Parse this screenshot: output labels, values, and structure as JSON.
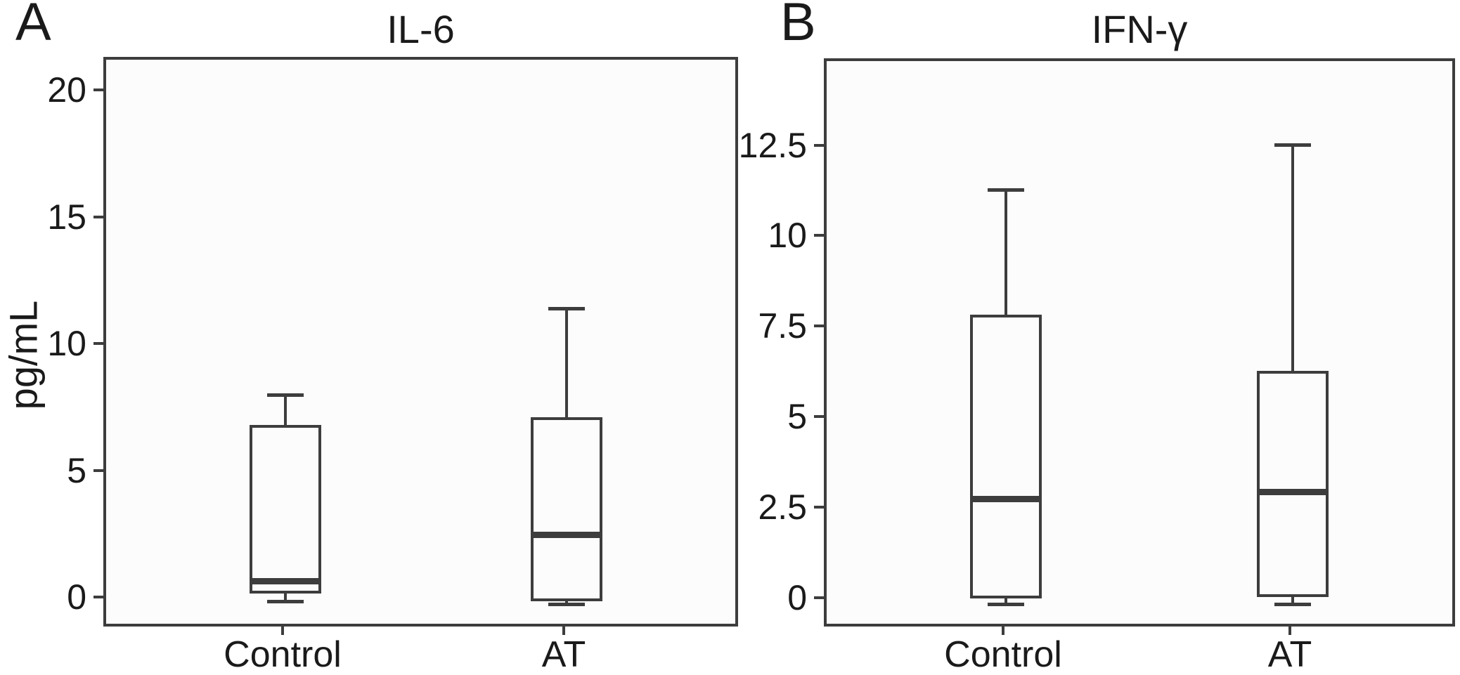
{
  "style": {
    "stroke": "#3d3d3d",
    "text": "#111111",
    "panel_bg": "#fcfcfc",
    "page_bg": "#ffffff"
  },
  "chart_data": [
    {
      "type": "box",
      "panel_label": "A",
      "title": "IL-6",
      "ylabel": "pg/mL",
      "xlabel": "",
      "categories": [
        "Control",
        "AT"
      ],
      "yticks": [
        0,
        5,
        10,
        15,
        20
      ],
      "ylim": [
        -1.15,
        21.3
      ],
      "grid": false,
      "legend": false,
      "boxes": [
        {
          "category": "Control",
          "whisker_low": -0.05,
          "q1": 0.25,
          "median": 0.75,
          "q3": 6.9,
          "whisker_high": 8.1
        },
        {
          "category": "AT",
          "whisker_low": -0.15,
          "q1": -0.05,
          "median": 2.6,
          "q3": 7.2,
          "whisker_high": 11.5
        }
      ]
    },
    {
      "type": "box",
      "panel_label": "B",
      "title": "IFN-γ",
      "ylabel": "",
      "xlabel": "",
      "categories": [
        "Control",
        "AT"
      ],
      "yticks": [
        0,
        2.5,
        5,
        7.5,
        10,
        12.5
      ],
      "ylim": [
        -0.8,
        14.9
      ],
      "grid": false,
      "legend": false,
      "boxes": [
        {
          "category": "Control",
          "whisker_low": -0.1,
          "q1": 0.05,
          "median": 2.8,
          "q3": 7.9,
          "whisker_high": 11.35
        },
        {
          "category": "AT",
          "whisker_low": -0.1,
          "q1": 0.1,
          "median": 3.0,
          "q3": 6.35,
          "whisker_high": 12.6
        }
      ]
    }
  ]
}
